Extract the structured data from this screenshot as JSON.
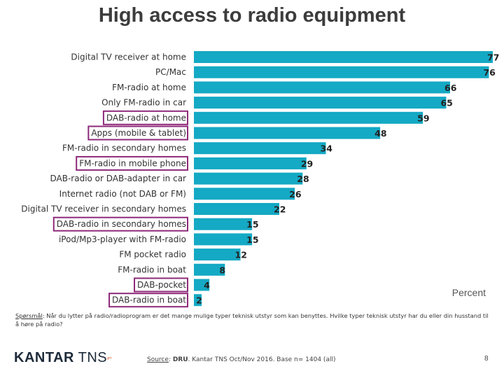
{
  "title": "High access to radio equipment",
  "unit_label": "Percent",
  "question": {
    "label": "Spørsmål",
    "text": ": Når du lytter på radio/radioprogram er det mange mulige typer teknisk utstyr som kan benyttes. Hvilke typer teknisk utstyr har du eller din husstand til å høre på radio?"
  },
  "source": {
    "label": "Source",
    "org": "DRU",
    "text": ". Kantar TNS Oct/Nov 2016. Base n= 1404 (all)"
  },
  "logo": {
    "part_a": "KANTAR",
    "part_b": " TNS",
    "mark": "⌐"
  },
  "page_number": "8",
  "colors": {
    "bar": "#14a9c4",
    "highlight_box": "#8e2a7a"
  },
  "chart_data": {
    "type": "bar",
    "orientation": "horizontal",
    "title": "High access to radio equipment",
    "xlabel": "Percent",
    "xlim": [
      0,
      77
    ],
    "grid": false,
    "categories": [
      "Digital TV receiver at home",
      "PC/Mac",
      "FM-radio at home",
      "Only FM-radio in car",
      "DAB-radio at home",
      "Apps (mobile & tablet)",
      "FM-radio in secondary homes",
      "FM-radio in mobile phone",
      "DAB-radio or  DAB-adapter in car",
      "Internet radio (not DAB or FM)",
      "Digital TV receiver in secondary homes",
      "DAB-radio in secondary homes",
      "iPod/Mp3-player with FM-radio",
      "FM pocket radio",
      "FM-radio in boat",
      "DAB-pocket",
      "DAB-radio in boat"
    ],
    "values": [
      77,
      76,
      66,
      65,
      59,
      48,
      34,
      29,
      28,
      26,
      22,
      15,
      15,
      12,
      8,
      4,
      2
    ],
    "highlighted": [
      "DAB-radio at home",
      "Apps (mobile & tablet)",
      "FM-radio in mobile phone",
      "DAB-radio in secondary homes",
      "DAB-pocket",
      "DAB-radio in boat"
    ]
  }
}
